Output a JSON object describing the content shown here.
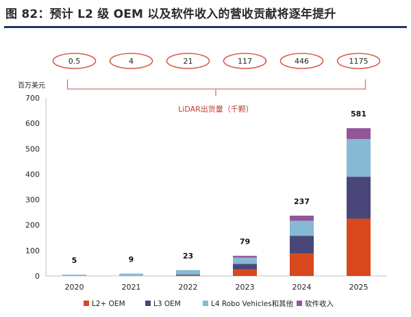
{
  "figure_title": "图 82：预计 L2 级 OEM 以及软件收入的营收贡献将逐年提升",
  "unit_label": "百万美元",
  "lidar_label": "LiDAR出货量（千颗）",
  "lidar_shipments": [
    "0.5",
    "4",
    "21",
    "117",
    "446",
    "1175"
  ],
  "colors": {
    "L2+ OEM": "#d9481e",
    "L3 OEM": "#4a4679",
    "L4 Robo Vehicles和其他": "#86b9d2",
    "软件收入": "#93559a",
    "bracket": "#d97070",
    "oval": "#d95a4a",
    "lidar_text": "#c23b2e"
  },
  "chart_data": {
    "type": "bar",
    "stacked": true,
    "categories": [
      "2020",
      "2021",
      "2022",
      "2023",
      "2024",
      "2025"
    ],
    "series": [
      {
        "name": "L2+ OEM",
        "values": [
          0,
          0,
          2,
          25,
          88,
          225
        ]
      },
      {
        "name": "L3 OEM",
        "values": [
          0,
          0,
          3,
          22,
          70,
          165
        ]
      },
      {
        "name": "L4 Robo Vehicles和其他",
        "values": [
          5,
          9,
          18,
          25,
          59,
          148
        ]
      },
      {
        "name": "软件收入",
        "values": [
          0,
          0,
          0,
          7,
          20,
          43
        ]
      }
    ],
    "totals": [
      "5",
      "9",
      "23",
      "79",
      "237",
      "581"
    ],
    "ylim": [
      0,
      700
    ],
    "yticks": [
      0,
      100,
      200,
      300,
      400,
      500,
      600,
      700
    ],
    "ylabel": "百万美元",
    "legend_position": "bottom"
  }
}
